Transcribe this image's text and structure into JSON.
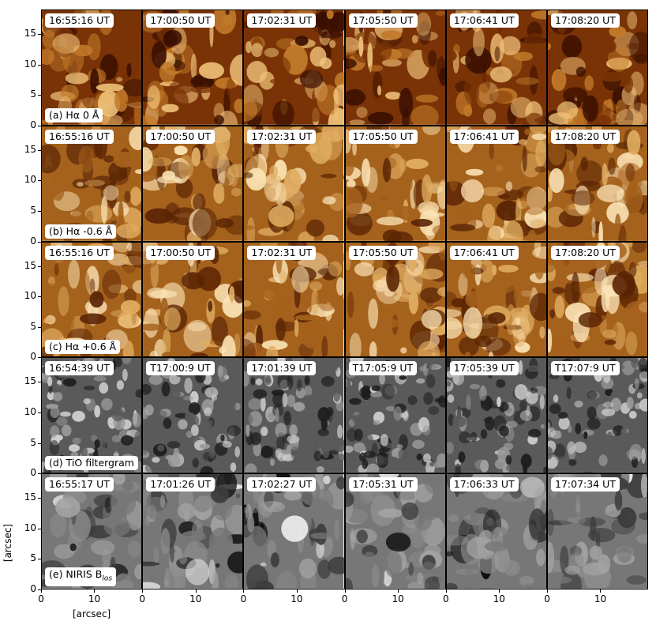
{
  "rows": [
    {
      "panel_label": "(a) Hα 0 Å",
      "colormap": "halpha-core",
      "timestamps": [
        "16:55:16 UT",
        "17:00:50 UT",
        "17:02:31 UT",
        "17:05:50 UT",
        "17:06:41 UT",
        "17:08:20 UT"
      ]
    },
    {
      "panel_label": "(b) Hα -0.6 Å",
      "colormap": "halpha-wing",
      "timestamps": [
        "16:55:16 UT",
        "17:00:50 UT",
        "17:02:31 UT",
        "17:05:50 UT",
        "17:06:41 UT",
        "17:08:20 UT"
      ]
    },
    {
      "panel_label": "(c) Hα +0.6 Å",
      "colormap": "halpha-wing",
      "timestamps": [
        "16:55:16 UT",
        "17:00:50 UT",
        "17:02:31 UT",
        "17:05:50 UT",
        "17:06:41 UT",
        "17:08:20 UT"
      ]
    },
    {
      "panel_label": "(d) TiO filtergram",
      "colormap": "granulation-gray",
      "timestamps": [
        "16:54:39 UT",
        "T17:00:9 UT",
        "17:01:39 UT",
        "T17:05:9 UT",
        "17:05:39 UT",
        "T17:07:9 UT"
      ]
    },
    {
      "panel_label": "(e) NIRIS B",
      "panel_label_subscript": "los",
      "colormap": "magnetogram-gray",
      "timestamps": [
        "16:55:17 UT",
        "17:01:26 UT",
        "17:02:27 UT",
        "17:05:31 UT",
        "17:06:33 UT",
        "17:07:34 UT"
      ]
    }
  ],
  "y_ticks": [
    "0",
    "5",
    "10",
    "15"
  ],
  "x_ticks": [
    "0",
    "10"
  ],
  "y_axis_label": "[arcsec]",
  "x_axis_label": "[arcsec]"
}
